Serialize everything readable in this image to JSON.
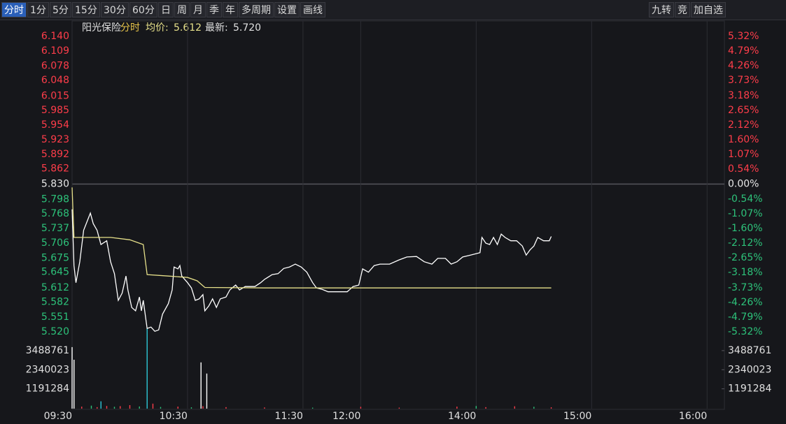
{
  "toolbar": {
    "tabs": [
      "分时",
      "1分",
      "5分",
      "15分",
      "30分",
      "60分",
      "日",
      "周",
      "月",
      "季",
      "年",
      "多周期",
      "设置",
      "画线"
    ],
    "right_tabs": [
      "九转",
      "竞",
      "加自选"
    ]
  },
  "chart_data": {
    "type": "line",
    "title": "阳光保险",
    "mode": "分时",
    "avg_label": "均价:",
    "avg_value": "5.612",
    "latest_label": "最新:",
    "latest_value": "5.720",
    "up_color": "#ff3d4a",
    "down_color": "#2dc27a",
    "flat_color": "#e8e8e8",
    "xlim": [
      0,
      339
    ],
    "xticks": [
      {
        "value": 0,
        "label": "09:30"
      },
      {
        "value": 60,
        "label": "10:30"
      },
      {
        "value": 120,
        "label": "11:30"
      },
      {
        "value": 150,
        "label": "12:00"
      },
      {
        "value": 210,
        "label": "14:00"
      },
      {
        "value": 270,
        "label": "15:00"
      },
      {
        "value": 330,
        "label": "16:00"
      }
    ],
    "ylim": [
      5.52,
      6.14
    ],
    "yticks": [
      {
        "value": 6.14,
        "label": "6.140"
      },
      6.109,
      6.078,
      6.048,
      6.015,
      5.985,
      5.954,
      5.923,
      5.892,
      5.862,
      {
        "value": 5.83,
        "label": "5.830"
      },
      5.798,
      5.768,
      5.737,
      5.706,
      5.675,
      5.645,
      5.612,
      5.582,
      5.551,
      {
        "value": 5.52,
        "label": "5.520"
      }
    ],
    "y2lim": [
      -5.32,
      5.32
    ],
    "y2ticks": [
      {
        "value": 5.32,
        "label": "5.32%"
      },
      {
        "value": 4.79,
        "label": "4.79%"
      },
      {
        "value": 4.26,
        "label": "4.26%"
      },
      {
        "value": 3.73,
        "label": "3.73%"
      },
      {
        "value": 3.18,
        "label": "3.18%"
      },
      {
        "value": 2.65,
        "label": "2.65%"
      },
      {
        "value": 2.12,
        "label": "2.12%"
      },
      {
        "value": 1.6,
        "label": "1.60%"
      },
      {
        "value": 1.07,
        "label": "1.07%"
      },
      {
        "value": 0.54,
        "label": "0.54%"
      },
      {
        "value": 0,
        "label": "0.00%"
      },
      {
        "value": -0.54,
        "label": "-0.54%"
      },
      {
        "value": -1.07,
        "label": "-1.07%"
      },
      {
        "value": -1.6,
        "label": "-1.60%"
      },
      {
        "value": -2.12,
        "label": "-2.12%"
      },
      {
        "value": -2.65,
        "label": "-2.65%"
      },
      {
        "value": -3.18,
        "label": "-3.18%"
      },
      {
        "value": -3.73,
        "label": "-3.73%"
      },
      {
        "value": -4.26,
        "label": "-4.26%"
      },
      {
        "value": -4.79,
        "label": "-4.79%"
      },
      {
        "value": -5.32,
        "label": "-5.32%"
      }
    ],
    "series": [
      {
        "color": "#ffffff",
        "x": [
          0,
          1,
          2,
          4,
          6,
          9.5,
          11,
          13,
          15,
          18,
          20,
          22,
          24,
          26,
          28,
          29,
          31,
          33,
          35,
          36,
          37,
          39,
          41,
          43,
          45,
          47,
          50,
          52,
          53,
          55,
          56,
          57,
          60,
          62,
          64,
          66,
          68,
          69,
          71,
          73,
          75,
          77,
          80,
          82,
          85,
          87,
          90,
          95,
          98,
          100,
          104,
          107,
          110,
          113,
          116,
          119,
          122,
          125,
          127,
          130,
          133,
          137,
          140,
          143,
          146,
          149,
          151,
          154,
          157,
          160,
          165,
          170,
          174,
          179,
          183,
          187,
          190,
          194,
          197,
          200,
          203,
          207,
          212,
          213,
          215,
          217,
          219,
          221,
          223,
          225,
          228,
          231,
          234,
          236,
          238,
          240,
          242,
          245,
          248,
          249
        ],
        "values": [
          5.777,
          5.659,
          5.623,
          5.667,
          5.733,
          5.769,
          5.747,
          5.733,
          5.703,
          5.711,
          5.667,
          5.642,
          5.586,
          5.601,
          5.637,
          5.608,
          5.571,
          5.564,
          5.593,
          5.564,
          5.586,
          5.527,
          5.53,
          5.521,
          5.524,
          5.557,
          5.579,
          5.608,
          5.656,
          5.652,
          5.659,
          5.637,
          5.623,
          5.612,
          5.586,
          5.589,
          5.598,
          5.564,
          5.574,
          5.589,
          5.571,
          5.589,
          5.593,
          5.608,
          5.618,
          5.608,
          5.615,
          5.615,
          5.623,
          5.63,
          5.64,
          5.642,
          5.653,
          5.656,
          5.662,
          5.656,
          5.645,
          5.623,
          5.612,
          5.609,
          5.604,
          5.604,
          5.604,
          5.604,
          5.615,
          5.618,
          5.652,
          5.645,
          5.659,
          5.662,
          5.662,
          5.671,
          5.677,
          5.678,
          5.667,
          5.662,
          5.674,
          5.674,
          5.662,
          5.667,
          5.677,
          5.681,
          5.686,
          5.718,
          5.706,
          5.703,
          5.718,
          5.703,
          5.725,
          5.718,
          5.711,
          5.711,
          5.7,
          5.681,
          5.692,
          5.7,
          5.718,
          5.711,
          5.711,
          5.72
        ]
      },
      {
        "color": "#e6e08a",
        "x": [
          0,
          1,
          20,
          30,
          37,
          39,
          50,
          60,
          65,
          69,
          100,
          150,
          249
        ],
        "values": [
          5.823,
          5.718,
          5.718,
          5.713,
          5.703,
          5.64,
          5.637,
          5.634,
          5.627,
          5.613,
          5.612,
          5.612,
          5.612
        ]
      }
    ],
    "volume": {
      "ylim": [
        0,
        3780000
      ],
      "yticks": [
        3488761,
        2340023,
        1191284
      ],
      "x": [
        0,
        1,
        5,
        10,
        13,
        15,
        18,
        22,
        25,
        30,
        35,
        39,
        42,
        46,
        55,
        62,
        67,
        68,
        70,
        80,
        100,
        125,
        150,
        170,
        200,
        210,
        215,
        230,
        240,
        249
      ],
      "values": [
        3700000,
        2940000,
        120000,
        180000,
        90000,
        440000,
        160000,
        110000,
        150000,
        210000,
        130000,
        4830000,
        300000,
        100000,
        120000,
        80000,
        2780000,
        150000,
        2110000,
        90000,
        70000,
        60000,
        110000,
        60000,
        120000,
        160000,
        90000,
        140000,
        110000,
        80000
      ],
      "colors": [
        "#ffffff",
        "#ffffff",
        "#ff3d4a",
        "#2dc27a",
        "#ff3d4a",
        "#2dc8d8",
        "#ff3d4a",
        "#2dc27a",
        "#ff3d4a",
        "#ff3d4a",
        "#2dc27a",
        "#2dc8d8",
        "#ff3d4a",
        "#2dc27a",
        "#ff3d4a",
        "#2dc27a",
        "#ffffff",
        "#ff3d4a",
        "#ffffff",
        "#ff3d4a",
        "#ff3d4a",
        "#2dc27a",
        "#ff3d4a",
        "#ff3d4a",
        "#ff3d4a",
        "#2dc27a",
        "#ff3d4a",
        "#ff3d4a",
        "#2dc27a",
        "#ff3d4a"
      ]
    }
  }
}
